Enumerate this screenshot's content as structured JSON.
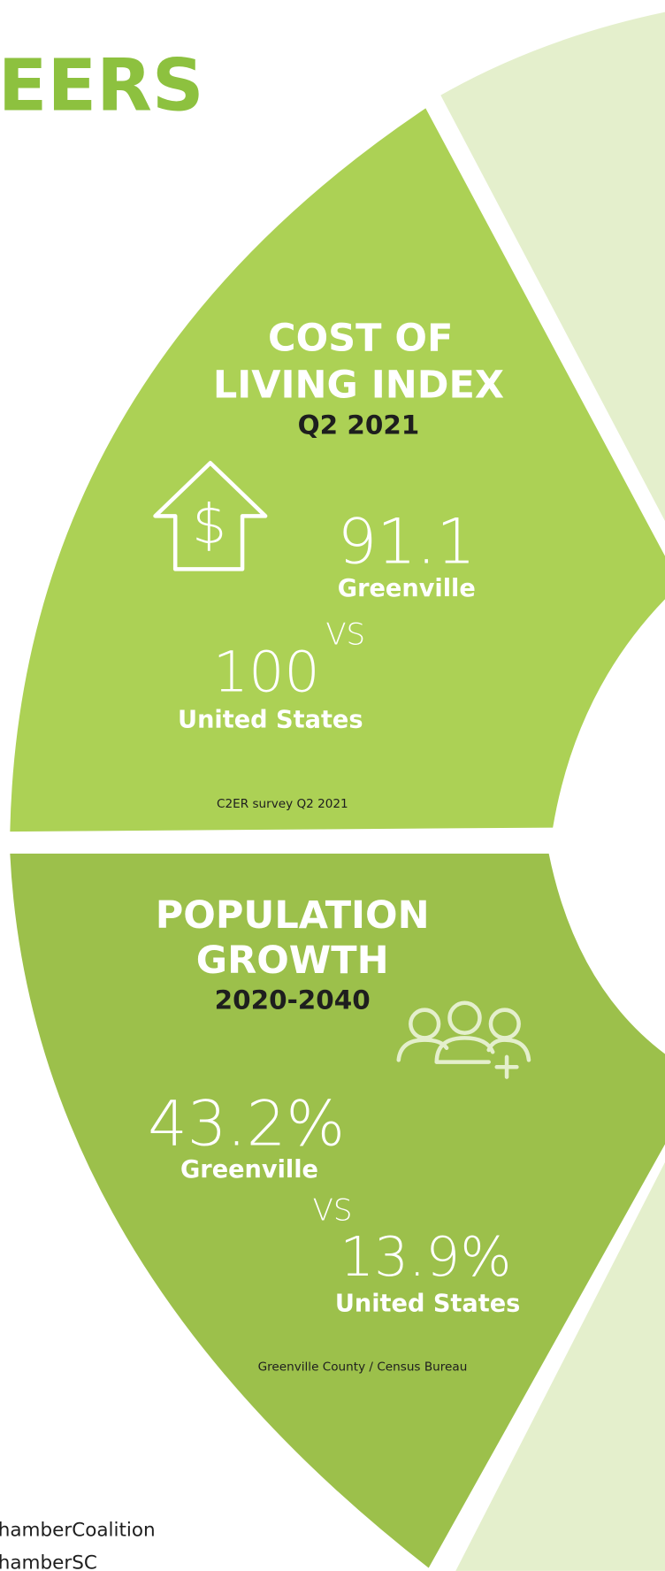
{
  "header": {
    "title": "EERS"
  },
  "cost_of_living": {
    "title_line1": "COST OF",
    "title_line2": "LIVING INDEX",
    "subtitle": "Q2 2021",
    "local_value": "91.1",
    "local_label": "Greenville",
    "vs": "VS",
    "national_value": "100",
    "national_label": "United States",
    "source": "C2ER survey Q2 2021"
  },
  "population_growth": {
    "title_line1": "POPULATION",
    "title_line2": "GROWTH",
    "subtitle": "2020-2040",
    "local_value": "43.2%",
    "local_label": "Greenville",
    "vs": "VS",
    "national_value": "13.9%",
    "national_label": "United States",
    "source": "Greenville County / Census Bureau"
  },
  "footer": {
    "line1": "hamberCoalition",
    "line2": "hamberSC"
  }
}
